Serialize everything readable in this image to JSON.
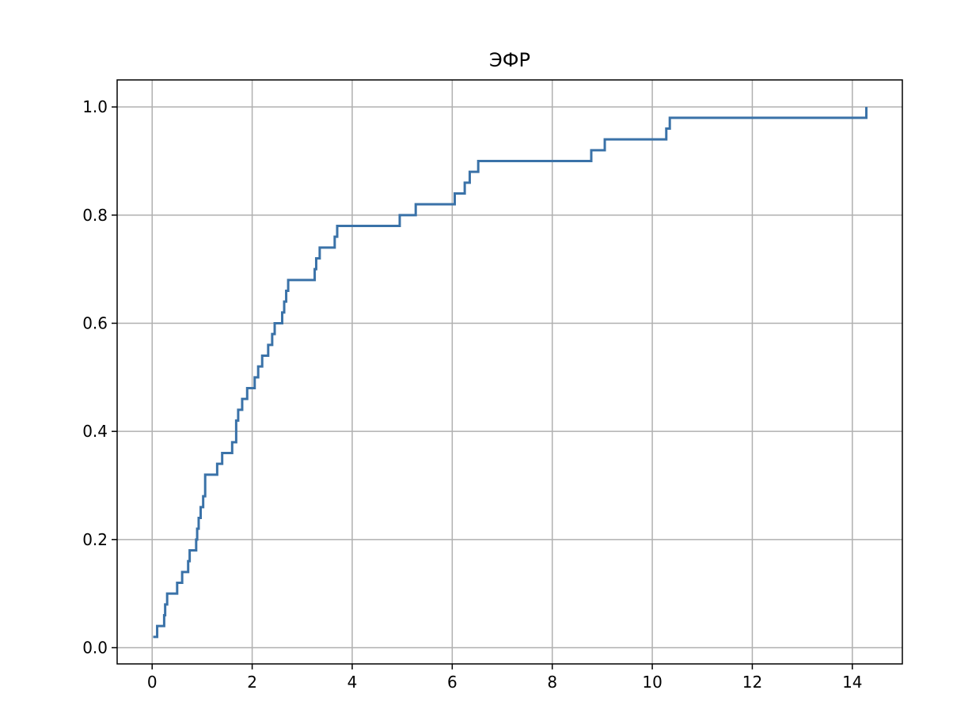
{
  "chart_data": {
    "type": "line",
    "step": "post",
    "title": "ЭФР",
    "xlabel": "",
    "ylabel": "",
    "xlim": [
      -0.7,
      15.0
    ],
    "ylim": [
      -0.03,
      1.05
    ],
    "xticks": [
      0,
      2,
      4,
      6,
      8,
      10,
      12,
      14
    ],
    "yticks": [
      0.0,
      0.2,
      0.4,
      0.6,
      0.8,
      1.0
    ],
    "xtick_labels": [
      "0",
      "2",
      "4",
      "6",
      "8",
      "10",
      "12",
      "14"
    ],
    "ytick_labels": [
      "0.0",
      "0.2",
      "0.4",
      "0.6",
      "0.8",
      "1.0"
    ],
    "grid": true,
    "line_color": "#3a72a8",
    "grid_color": "#b0b0b0",
    "series": [
      {
        "x": [
          0.02,
          0.1,
          0.24,
          0.26,
          0.3,
          0.5,
          0.6,
          0.72,
          0.75,
          0.88,
          0.9,
          0.93,
          0.97,
          1.02,
          1.06,
          1.3,
          1.4,
          1.6,
          1.68,
          1.72,
          1.8,
          1.9,
          2.0,
          2.05,
          2.12,
          2.2,
          2.32,
          2.4,
          2.45,
          2.6,
          2.64,
          2.68,
          2.72,
          3.25,
          3.28,
          3.35,
          3.65,
          3.7,
          4.95,
          5.27,
          6.05,
          6.25,
          6.35,
          6.52,
          8.78,
          9.05,
          10.28,
          10.35,
          14.28
        ],
        "y": [
          0.02,
          0.04,
          0.06,
          0.08,
          0.1,
          0.12,
          0.14,
          0.16,
          0.18,
          0.2,
          0.22,
          0.24,
          0.26,
          0.28,
          0.32,
          0.34,
          0.36,
          0.38,
          0.42,
          0.44,
          0.46,
          0.48,
          0.48,
          0.5,
          0.52,
          0.54,
          0.56,
          0.58,
          0.6,
          0.62,
          0.64,
          0.66,
          0.68,
          0.7,
          0.72,
          0.74,
          0.76,
          0.78,
          0.8,
          0.82,
          0.84,
          0.86,
          0.88,
          0.9,
          0.92,
          0.94,
          0.96,
          0.98,
          1.0
        ]
      }
    ]
  }
}
